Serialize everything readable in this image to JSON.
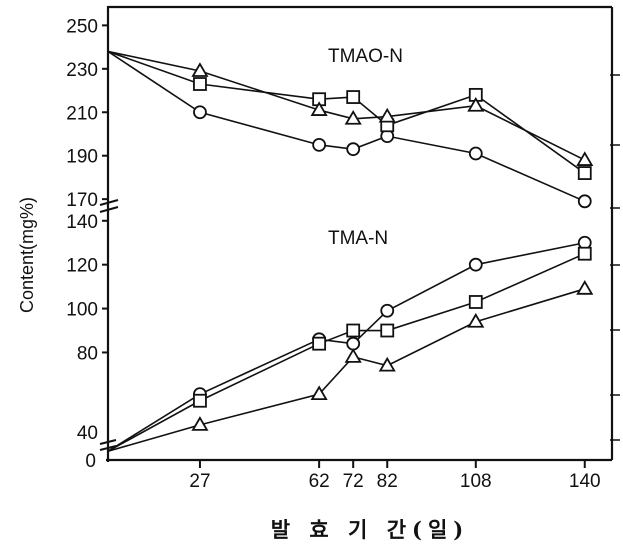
{
  "chart_data": {
    "type": "line",
    "xlabel": "발 효 기 간(일)",
    "ylabel": "Content(mg%)",
    "x_ticks": [
      27,
      62,
      72,
      82,
      108,
      140
    ],
    "xlim": [
      0,
      148
    ],
    "panels": [
      {
        "id": "tmao",
        "label": "TMAO-N",
        "ylim": [
          165,
          258
        ],
        "y_ticks": [
          170,
          190,
          210,
          230,
          250
        ],
        "series": [
          {
            "marker": "circle",
            "points": [
              [
                0,
                238
              ],
              [
                27,
                210
              ],
              [
                62,
                195
              ],
              [
                72,
                193
              ],
              [
                82,
                199
              ],
              [
                108,
                191
              ],
              [
                140,
                169
              ]
            ]
          },
          {
            "marker": "square",
            "points": [
              [
                0,
                238
              ],
              [
                27,
                223
              ],
              [
                62,
                216
              ],
              [
                72,
                217
              ],
              [
                82,
                204
              ],
              [
                108,
                218
              ],
              [
                140,
                182
              ]
            ]
          },
          {
            "marker": "triangle",
            "points": [
              [
                0,
                238
              ],
              [
                27,
                229
              ],
              [
                62,
                211
              ],
              [
                72,
                207
              ],
              [
                82,
                208
              ],
              [
                108,
                213
              ],
              [
                140,
                188
              ]
            ]
          }
        ]
      },
      {
        "id": "tma",
        "label": "TMA-N",
        "ylim": [
          31,
          144
        ],
        "y_ticks_upper": [
          80,
          100,
          120,
          140
        ],
        "y_ticks_lower": [
          40
        ],
        "zero_label": "0",
        "series": [
          {
            "marker": "circle",
            "points": [
              [
                0,
                35
              ],
              [
                27,
                61
              ],
              [
                62,
                86
              ],
              [
                72,
                84
              ],
              [
                82,
                99
              ],
              [
                108,
                120
              ],
              [
                140,
                130
              ]
            ]
          },
          {
            "marker": "square",
            "points": [
              [
                0,
                35
              ],
              [
                27,
                58
              ],
              [
                62,
                84
              ],
              [
                72,
                90
              ],
              [
                82,
                90
              ],
              [
                108,
                103
              ],
              [
                140,
                125
              ]
            ]
          },
          {
            "marker": "triangle",
            "points": [
              [
                0,
                35
              ],
              [
                27,
                47
              ],
              [
                62,
                61
              ],
              [
                72,
                78
              ],
              [
                82,
                74
              ],
              [
                108,
                94
              ],
              [
                140,
                109
              ]
            ]
          }
        ]
      }
    ]
  }
}
